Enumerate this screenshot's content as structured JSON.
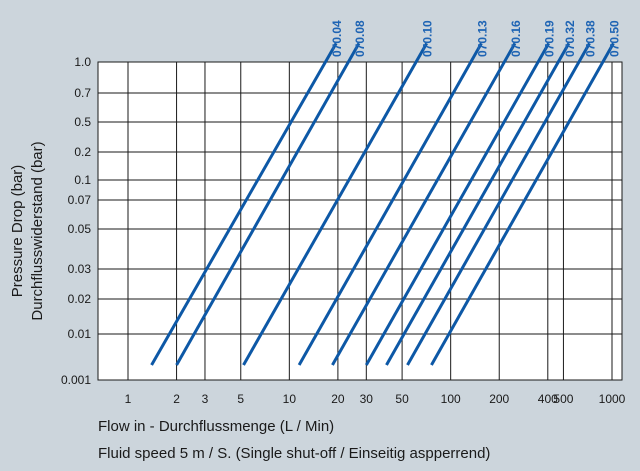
{
  "chart_data": {
    "type": "line",
    "title": "",
    "xlabel": "Flow in - Durchflussmenge (L / Min)",
    "xlabel2": "Fluid speed 5 m / S. (Single shut-off / Einseitig aspperrend)",
    "ylabel": "Pressure Drop (bar)",
    "ylabel2": "Durchflusswiderstand (bar)",
    "x_ticks": [
      {
        "value": 1,
        "label": "1"
      },
      {
        "value": 2,
        "label": "2"
      },
      {
        "value": 3,
        "label": "3"
      },
      {
        "value": 5,
        "label": "5"
      },
      {
        "value": 10,
        "label": "10"
      },
      {
        "value": 20,
        "label": "20"
      },
      {
        "value": 30,
        "label": "30"
      },
      {
        "value": 50,
        "label": "50"
      },
      {
        "value": 100,
        "label": "100"
      },
      {
        "value": 200,
        "label": "200"
      },
      {
        "value": 400,
        "label": "400"
      },
      {
        "value": 500,
        "label": "500"
      },
      {
        "value": 1000,
        "label": "1000"
      }
    ],
    "y_ticks": [
      "0.001",
      "0.01",
      "0.02",
      "0.03",
      "0.05",
      "0.07",
      "0.1",
      "0.2",
      "0.5",
      "0.7",
      "1.0"
    ],
    "series": [
      {
        "name": "070.04",
        "x": [
          1.4,
          19.5
        ],
        "y_level": [
          0,
          10.6
        ]
      },
      {
        "name": "070.08",
        "x": [
          2.0,
          27.0
        ],
        "y_level": [
          0,
          10.6
        ]
      },
      {
        "name": "070.10",
        "x": [
          5.2,
          71.0
        ],
        "y_level": [
          0,
          10.6
        ]
      },
      {
        "name": "070.13",
        "x": [
          11.5,
          155
        ],
        "y_level": [
          0,
          10.6
        ]
      },
      {
        "name": "070.16",
        "x": [
          18.5,
          250
        ],
        "y_level": [
          0,
          10.6
        ]
      },
      {
        "name": "070.19",
        "x": [
          30.0,
          405
        ],
        "y_level": [
          0,
          10.6
        ]
      },
      {
        "name": "070.32",
        "x": [
          40.0,
          540
        ],
        "y_level": [
          0,
          10.6
        ]
      },
      {
        "name": "070.38",
        "x": [
          54.0,
          725
        ],
        "y_level": [
          0,
          10.6
        ]
      },
      {
        "name": "070.50",
        "x": [
          76.0,
          1020
        ],
        "y_level": [
          0,
          10.6
        ]
      }
    ],
    "x_scale": "log",
    "xlim": [
      1,
      1000
    ],
    "grid": true,
    "colors": {
      "line": "#0d58a6",
      "label": "#1e64b4",
      "grid": "#1a1a1a",
      "plot_bg": "#ffffff"
    }
  }
}
